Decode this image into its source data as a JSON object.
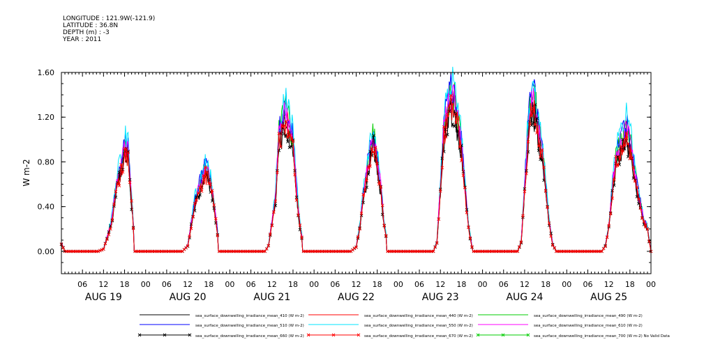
{
  "header": {
    "longitude": "LONGITUDE : 121.9W(-121.9)",
    "latitude": "LATITUDE : 36.8N",
    "depth": "DEPTH (m) : -3",
    "year": "YEAR : 2011"
  },
  "chart_data": {
    "type": "line",
    "title": "",
    "ylabel": "W m-2",
    "xlabel": "",
    "ylim": [
      -0.2,
      1.6
    ],
    "yticks": [
      "0.00",
      "0.40",
      "0.80",
      "1.20",
      "1.60"
    ],
    "ytick_values": [
      0.0,
      0.4,
      0.8,
      1.2,
      1.6
    ],
    "x_range_hours": [
      0,
      168
    ],
    "x_tick_labels": [
      "06",
      "12",
      "18",
      "00",
      "06",
      "12",
      "18",
      "00",
      "06",
      "12",
      "18",
      "00",
      "06",
      "12",
      "18",
      "00",
      "06",
      "12",
      "18",
      "00",
      "06",
      "12",
      "18",
      "00",
      "06",
      "12",
      "18",
      "00"
    ],
    "x_tick_hours": [
      6,
      12,
      18,
      24,
      30,
      36,
      42,
      48,
      54,
      60,
      66,
      72,
      78,
      84,
      90,
      96,
      102,
      108,
      114,
      120,
      126,
      132,
      138,
      144,
      150,
      156,
      162,
      168
    ],
    "day_labels": [
      "AUG 19",
      "AUG 20",
      "AUG 21",
      "AUG 22",
      "AUG 23",
      "AUG 24",
      "AUG 25"
    ],
    "day_label_hours": [
      12,
      36,
      60,
      84,
      108,
      132,
      156
    ],
    "days": [
      {
        "day": "AUG 19",
        "rise": 10.5,
        "set": 20.5,
        "profile": [
          [
            12,
            0.02
          ],
          [
            14,
            0.22
          ],
          [
            16,
            0.62
          ],
          [
            17,
            0.72
          ],
          [
            18,
            0.9
          ],
          [
            19,
            0.85
          ],
          [
            20,
            0.42
          ],
          [
            21,
            0.05
          ]
        ]
      },
      {
        "day": "AUG 20",
        "rise": 34.5,
        "set": 44.5,
        "profile": [
          [
            36,
            0.05
          ],
          [
            38,
            0.42
          ],
          [
            40,
            0.62
          ],
          [
            41,
            0.7
          ],
          [
            42,
            0.65
          ],
          [
            43,
            0.52
          ],
          [
            44,
            0.28
          ],
          [
            45,
            0.04
          ]
        ]
      },
      {
        "day": "AUG 21",
        "rise": 58.0,
        "set": 68.5,
        "profile": [
          [
            59,
            0.05
          ],
          [
            61,
            0.45
          ],
          [
            62,
            1.0
          ],
          [
            63,
            1.1
          ],
          [
            64,
            1.22
          ],
          [
            65,
            1.05
          ],
          [
            66,
            0.95
          ],
          [
            67,
            0.52
          ],
          [
            68,
            0.22
          ],
          [
            69,
            0.05
          ]
        ]
      },
      {
        "day": "AUG 22",
        "rise": 82.5,
        "set": 92.5,
        "profile": [
          [
            84,
            0.04
          ],
          [
            85,
            0.2
          ],
          [
            86,
            0.48
          ],
          [
            88,
            0.85
          ],
          [
            89,
            1.0
          ],
          [
            90,
            0.75
          ],
          [
            91,
            0.55
          ],
          [
            92,
            0.22
          ],
          [
            93,
            0.05
          ]
        ]
      },
      {
        "day": "AUG 23",
        "rise": 106.0,
        "set": 117.0,
        "profile": [
          [
            107,
            0.08
          ],
          [
            108,
            0.55
          ],
          [
            109,
            1.05
          ],
          [
            110,
            1.2
          ],
          [
            111,
            1.32
          ],
          [
            112,
            1.28
          ],
          [
            113,
            1.12
          ],
          [
            114,
            0.9
          ],
          [
            115,
            0.55
          ],
          [
            116,
            0.22
          ],
          [
            117,
            0.04
          ]
        ]
      },
      {
        "day": "AUG 24",
        "rise": 130.0,
        "set": 141.0,
        "profile": [
          [
            131,
            0.08
          ],
          [
            132,
            0.55
          ],
          [
            133,
            1.05
          ],
          [
            134,
            1.3
          ],
          [
            135,
            1.25
          ],
          [
            136,
            1.02
          ],
          [
            137,
            0.85
          ],
          [
            138,
            0.55
          ],
          [
            139,
            0.25
          ],
          [
            140,
            0.06
          ]
        ]
      },
      {
        "day": "AUG 25",
        "rise": 154.0,
        "set": 168.0,
        "profile": [
          [
            155,
            0.05
          ],
          [
            156,
            0.22
          ],
          [
            157,
            0.55
          ],
          [
            158,
            0.8
          ],
          [
            159,
            0.88
          ],
          [
            160,
            0.95
          ],
          [
            161,
            1.05
          ],
          [
            162,
            0.95
          ],
          [
            163,
            0.75
          ],
          [
            164,
            0.55
          ],
          [
            165,
            0.4
          ],
          [
            166,
            0.25
          ],
          [
            167,
            0.2
          ]
        ]
      }
    ],
    "initial_value": 0.07,
    "series": [
      {
        "name": "sea_surface_downwelling_irradiance_mean_410 (W m-2)",
        "color": "#000000",
        "scale": 0.98,
        "marker": false
      },
      {
        "name": "sea_surface_downwelling_irradiance_mean_440 (W m-2)",
        "color": "#ff0000",
        "scale": 1.02,
        "marker": false
      },
      {
        "name": "sea_surface_downwelling_irradiance_mean_490 (W m-2)",
        "color": "#00cc00",
        "scale": 1.08,
        "marker": false
      },
      {
        "name": "sea_surface_downwelling_irradiance_mean_510 (W m-2)",
        "color": "#0000ff",
        "scale": 1.1,
        "marker": false
      },
      {
        "name": "sea_surface_downwelling_irradiance_mean_550 (W m-2)",
        "color": "#00e5ff",
        "scale": 1.15,
        "marker": false
      },
      {
        "name": "sea_surface_downwelling_irradiance_mean_610 (W m-2)",
        "color": "#ff00ff",
        "scale": 1.05,
        "marker": false
      },
      {
        "name": "sea_surface_downwelling_irradiance_mean_660 (W m-2)",
        "color": "#000000",
        "scale": 0.95,
        "marker": true
      },
      {
        "name": "sea_surface_downwelling_irradiance_mean_670 (W m-2)",
        "color": "#ff0000",
        "scale": 0.97,
        "marker": true
      },
      {
        "name": "sea_surface_downwelling_irradiance_mean_700 (W m-2) No Valid Data",
        "color": "#00cc00",
        "scale": 0,
        "marker": true,
        "no_data": true
      }
    ],
    "legend_position": "bottom"
  }
}
